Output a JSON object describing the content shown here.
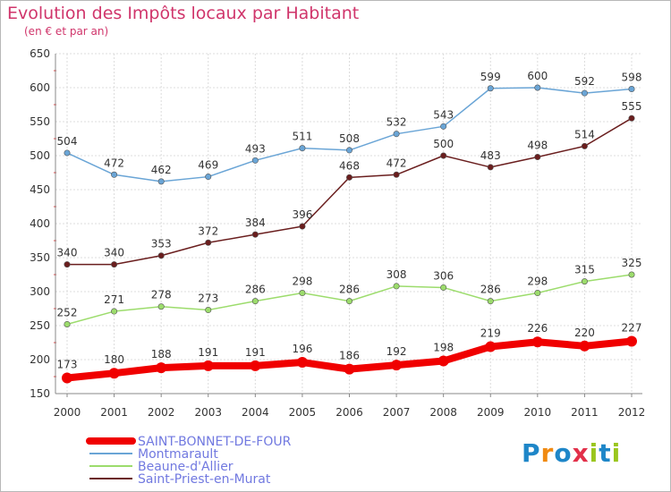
{
  "header": {
    "title": "Evolution des Impôts locaux par Habitant",
    "subtitle": "(en € et par an)"
  },
  "logo": {
    "text": "Proxiti",
    "letter_colors": [
      "#1e86c8",
      "#f08a12",
      "#1e86c8",
      "#e2304a",
      "#9ac61e",
      "#1e86c8",
      "#9ac61e"
    ]
  },
  "chart_data": {
    "type": "line",
    "x": [
      "2000",
      "2001",
      "2002",
      "2003",
      "2004",
      "2005",
      "2006",
      "2007",
      "2008",
      "2009",
      "2010",
      "2011",
      "2012"
    ],
    "ylim": [
      150,
      650
    ],
    "yticks": [
      150,
      200,
      250,
      300,
      350,
      400,
      450,
      500,
      550,
      600,
      650
    ],
    "grid": true,
    "legend_position": "bottom-left",
    "series": [
      {
        "name": "SAINT-BONNET-DE-FOUR",
        "color": "#f00000",
        "emphasis": true,
        "values": [
          173,
          180,
          188,
          191,
          191,
          196,
          186,
          192,
          198,
          219,
          226,
          220,
          227
        ]
      },
      {
        "name": "Montmarault",
        "color": "#6aa5d6",
        "emphasis": false,
        "values": [
          504,
          472,
          462,
          469,
          493,
          511,
          508,
          532,
          543,
          599,
          600,
          592,
          598
        ]
      },
      {
        "name": "Beaune-d'Allier",
        "color": "#9cdc6c",
        "emphasis": false,
        "values": [
          252,
          271,
          278,
          273,
          286,
          298,
          286,
          308,
          306,
          286,
          298,
          315,
          325
        ]
      },
      {
        "name": "Saint-Priest-en-Murat",
        "color": "#6a1e1e",
        "emphasis": false,
        "values": [
          340,
          340,
          353,
          372,
          384,
          396,
          468,
          472,
          500,
          483,
          498,
          514,
          555
        ]
      }
    ]
  }
}
